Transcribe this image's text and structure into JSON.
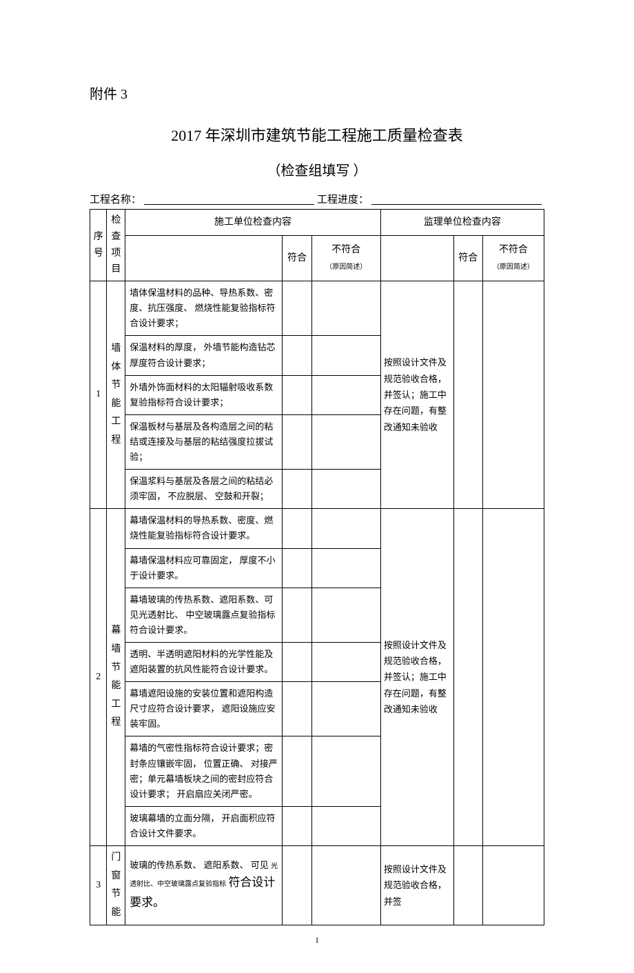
{
  "attachment_label": "附件 3",
  "main_title": "2017 年深圳市建筑节能工程施工质量检查表",
  "sub_title": "（检查组填写 ）",
  "meta": {
    "project_name_label": "工程名称：",
    "project_progress_label": "工程进度：",
    "project_name_value": "",
    "project_progress_value": ""
  },
  "headers": {
    "seq": "序号",
    "check_item": "检查项目",
    "construction_header": "施工单位检查内容",
    "supervision_header": "监理单位检查内容",
    "conform": "符合",
    "noconform": "不符合",
    "noconform_sub": "（原因简述）"
  },
  "rows": [
    {
      "seq": "1",
      "item": "墙体节能工程",
      "construction": [
        "墙体保温材料的品种、导热系数、密度、抗压强度、 燃烧性能复验指标符合设计要求；",
        "保温材料的厚度， 外墙节能构造钻芯厚度符合设计要求；",
        "外墙外饰面材料的太阳辐射吸收系数复验指标符合设计要求；",
        "保温板材与基层及各构造层之间的粘结或连接及与基层的粘结强度拉拔试验；",
        "保温浆料与基层及各层之间的粘结必须牢固， 不应脱层、 空鼓和开裂；"
      ],
      "supervision": "按照设计文件及规范验收合格，并签认；施工中存在问题，有整改通知未验收"
    },
    {
      "seq": "2",
      "item": "幕墙节能工程",
      "construction": [
        "幕墙保温材料的导热系数、密度、燃烧性能复验指标符合设计要求。",
        "幕墙保温材料应可靠固定， 厚度不小于设计要求。",
        "幕墙玻璃的传热系数、遮阳系数、可见光透射比、 中空玻璃露点复验指标符合设计要求。",
        "透明、半透明遮阳材料的光学性能及遮阳装置的抗风性能符合设计要求。",
        "幕墙遮阳设施的安装位置和遮阳构造尺寸应符合设计要求， 遮阳设施应安装牢固。",
        "幕墙的气密性指标符合设计要求；密封条应镶嵌牢固， 位置正确、 对接严密；单元幕墙板块之间的密封应符合设计要求； 开启扇应关闭严密。",
        "玻璃幕墙的立面分隔， 开启面积应符合设计文件要求。"
      ],
      "supervision": "按照设计文件及规范验收合格，并签认；施工中存在问题，有整改通知未验收"
    },
    {
      "seq": "3",
      "item": "门窗节能",
      "construction_mixed": {
        "line1_prefix": "玻璃的传热系数、",
        "line1_mid": "遮阳系数、",
        "line1_suffix": "可见",
        "line2_small": "光透射比、中空玻璃露点复验指标",
        "line3_large": "符合设计要求。"
      },
      "supervision": "按照设计文件及规范验收合格，并签"
    }
  ],
  "page_number": "1"
}
